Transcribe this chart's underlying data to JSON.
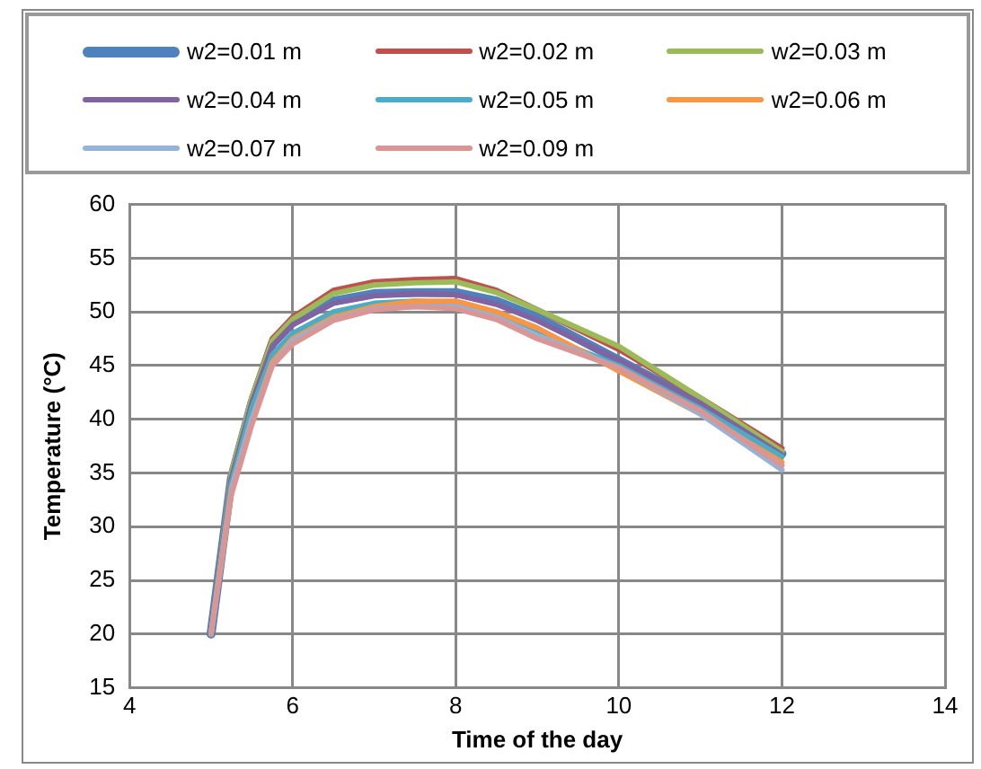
{
  "chart_data": {
    "type": "line",
    "xlabel": "Time of the day",
    "ylabel": "Temperature (°C)",
    "x": [
      5,
      5.25,
      5.5,
      5.75,
      6,
      6.5,
      7,
      7.5,
      8,
      8.5,
      9,
      10,
      11,
      12
    ],
    "xlim": [
      4,
      14
    ],
    "xticks": [
      4,
      6,
      8,
      10,
      12,
      14
    ],
    "ylim": [
      15,
      60
    ],
    "yticks": [
      15,
      20,
      25,
      30,
      35,
      40,
      45,
      50,
      55,
      60
    ],
    "grid": true,
    "legend": "top",
    "marker": "none",
    "line_style": "solid",
    "series": [
      {
        "name": "w2=0.01 m",
        "color": "#4f81bd",
        "values": [
          20,
          34.5,
          41.5,
          47,
          49,
          51,
          51.7,
          51.8,
          51.8,
          51,
          49.5,
          45.5,
          41.5,
          36.8
        ]
      },
      {
        "name": "w2=0.02 m",
        "color": "#c0504d",
        "values": [
          20,
          35,
          42,
          47.5,
          49.5,
          52,
          52.8,
          53,
          53.1,
          52,
          50.2,
          46.5,
          42,
          37.3
        ]
      },
      {
        "name": "w2=0.03 m",
        "color": "#9bbb59",
        "values": [
          20,
          35,
          42,
          47.3,
          49.3,
          51.7,
          52.5,
          52.7,
          52.8,
          51.8,
          50.2,
          46.8,
          42,
          37
        ]
      },
      {
        "name": "w2=0.04 m",
        "color": "#8064a2",
        "values": [
          20,
          34.5,
          41.5,
          46.8,
          48.8,
          50.8,
          51.5,
          51.7,
          51.6,
          50.7,
          49.2,
          45.5,
          41.5,
          36.7
        ]
      },
      {
        "name": "w2=0.05 m",
        "color": "#4bacc6",
        "values": [
          20,
          34,
          41,
          46,
          48,
          50,
          50.8,
          51,
          50.8,
          49.6,
          48,
          45,
          41,
          36.5
        ]
      },
      {
        "name": "w2=0.06 m",
        "color": "#f79646",
        "values": [
          20,
          33.5,
          40,
          45.3,
          47.5,
          49.5,
          50.5,
          51,
          51,
          50,
          48.5,
          44.5,
          40.5,
          36
        ]
      },
      {
        "name": "w2=0.07 m",
        "color": "#95b3d7",
        "values": [
          20,
          33.5,
          40,
          45,
          47.3,
          49.3,
          50.3,
          50.5,
          50.5,
          49.5,
          47.8,
          44.8,
          40.5,
          35.3
        ]
      },
      {
        "name": "w2=0.09 m",
        "color": "#d99694",
        "values": [
          20,
          33,
          39.5,
          45,
          47,
          49.2,
          50.2,
          50.5,
          50.3,
          49.3,
          47.5,
          44.8,
          40.8,
          35.7
        ]
      }
    ]
  }
}
